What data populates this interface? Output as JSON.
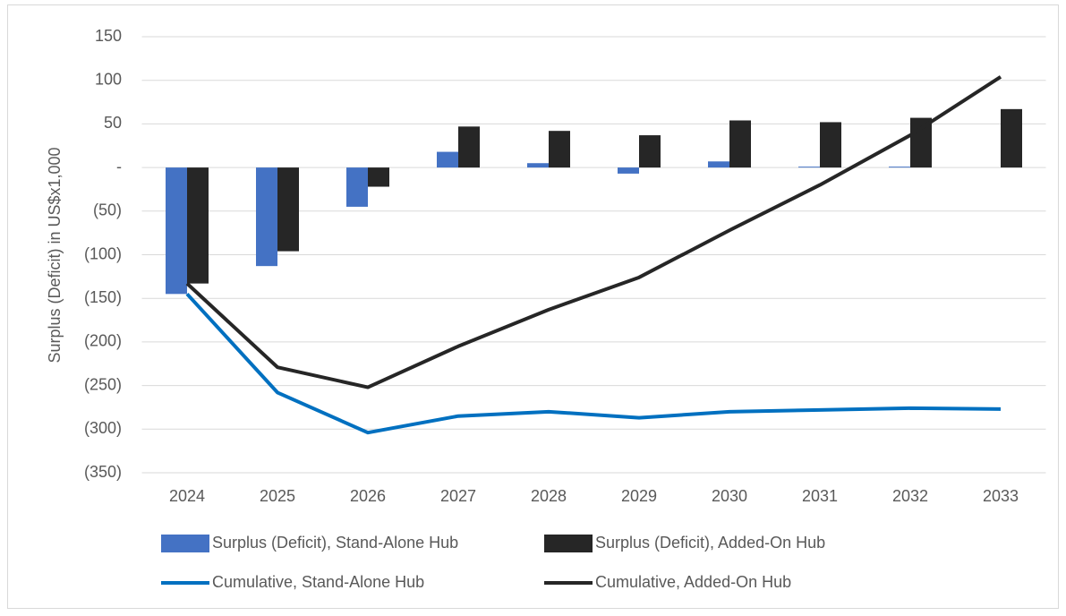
{
  "chart_data": {
    "type": "bar",
    "y_label": "Surplus (Deficit) in US$x1,000",
    "categories": [
      "2024",
      "2025",
      "2026",
      "2027",
      "2028",
      "2029",
      "2030",
      "2031",
      "2032",
      "2033"
    ],
    "series": [
      {
        "name": "Surplus (Deficit), Stand-Alone Hub",
        "type": "bar",
        "color": "#4472c4",
        "values": [
          -145,
          -113,
          -45,
          18,
          5,
          -7,
          7,
          1,
          1,
          0
        ]
      },
      {
        "name": "Surplus (Deficit), Added-On Hub",
        "type": "bar",
        "color": "#262626",
        "values": [
          -133,
          -96,
          -22,
          47,
          42,
          37,
          54,
          52,
          57,
          67
        ]
      },
      {
        "name": "Cumulative, Stand-Alone Hub",
        "type": "line",
        "color": "#0070c0",
        "values": [
          -145,
          -258,
          -304,
          -285,
          -280,
          -287,
          -280,
          -278,
          -276,
          -277
        ]
      },
      {
        "name": "Cumulative, Added-On Hub",
        "type": "line",
        "color": "#262626",
        "values": [
          -133,
          -229,
          -252,
          -205,
          -163,
          -126,
          -72,
          -20,
          37,
          104
        ]
      }
    ],
    "ylim": [
      -350,
      150
    ],
    "yticks": [
      {
        "value": -350,
        "label": "(350)"
      },
      {
        "value": -300,
        "label": "(300)"
      },
      {
        "value": -250,
        "label": "(250)"
      },
      {
        "value": -200,
        "label": "(200)"
      },
      {
        "value": -150,
        "label": "(150)"
      },
      {
        "value": -100,
        "label": "(100)"
      },
      {
        "value": -50,
        "label": "(50)"
      },
      {
        "value": 0,
        "label": "-"
      },
      50,
      100,
      150
    ],
    "grid": true,
    "legend": "bottom"
  }
}
